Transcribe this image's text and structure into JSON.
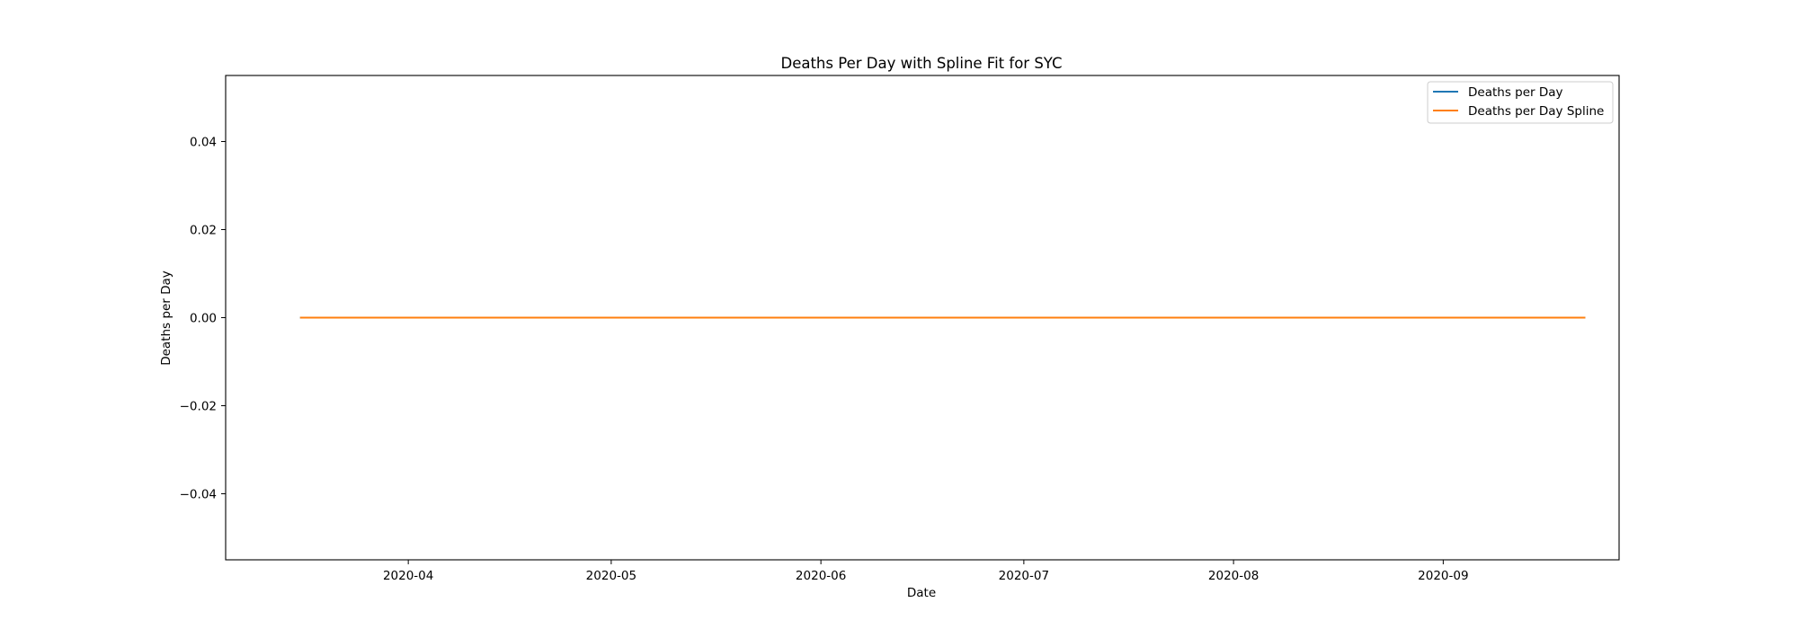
{
  "chart_data": {
    "type": "line",
    "title": "Deaths Per Day with Spline Fit for SYC",
    "xlabel": "Date",
    "ylabel": "Deaths per Day",
    "x_axis_type": "date",
    "xlim": [
      "2020-03-05",
      "2020-09-27"
    ],
    "ylim": [
      -0.055,
      0.055
    ],
    "x_ticks": [
      "2020-04-01",
      "2020-05-01",
      "2020-06-01",
      "2020-07-01",
      "2020-08-01",
      "2020-09-01"
    ],
    "x_tick_labels": [
      "2020-04",
      "2020-05",
      "2020-06",
      "2020-07",
      "2020-08",
      "2020-09"
    ],
    "y_ticks": [
      0.04,
      0.02,
      0.0,
      -0.02,
      -0.04
    ],
    "y_tick_labels": [
      "0.04",
      "0.02",
      "0.00",
      "−0.02",
      "−0.04"
    ],
    "grid": false,
    "legend_position": "top-right",
    "series": [
      {
        "name": "Deaths per Day",
        "color": "#1f77b4",
        "x": [
          "2020-03-16",
          "2020-09-22"
        ],
        "y": [
          0,
          0
        ]
      },
      {
        "name": "Deaths per Day Spline",
        "color": "#ff7f0e",
        "x": [
          "2020-03-16",
          "2020-09-22"
        ],
        "y": [
          0,
          0
        ]
      }
    ]
  }
}
